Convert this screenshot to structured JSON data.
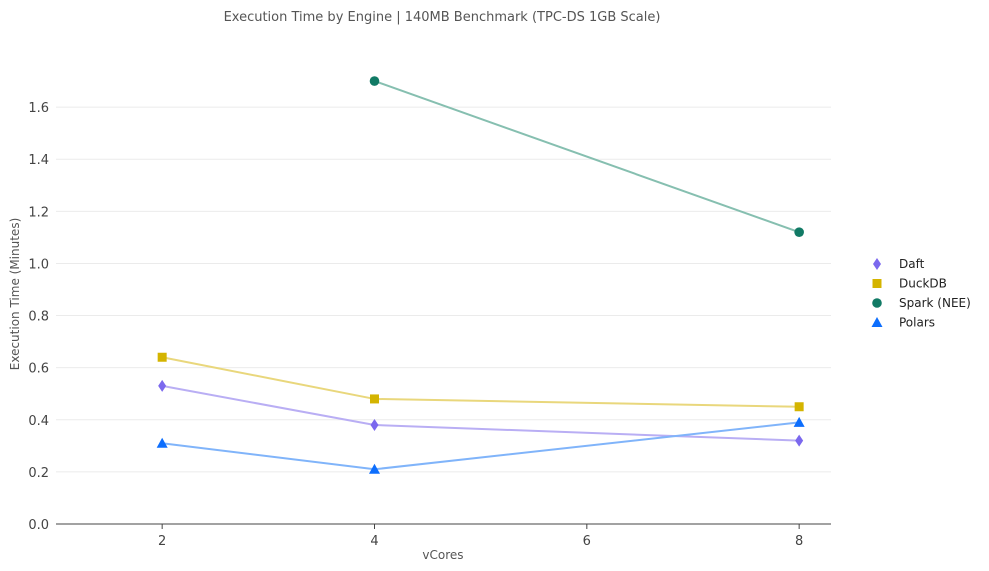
{
  "chart_data": {
    "type": "line",
    "title": "Execution Time by Engine | 140MB Benchmark (TPC-DS 1GB Scale)",
    "xlabel": "vCores",
    "ylabel": "Execution Time (Minutes)",
    "xlim": [
      1,
      8.3
    ],
    "ylim": [
      0,
      1.8
    ],
    "xticks": [
      2,
      4,
      6,
      8
    ],
    "yticks": [
      0.0,
      0.2,
      0.4,
      0.6,
      0.8,
      1.0,
      1.2,
      1.4,
      1.6
    ],
    "ytick_labels": [
      "0.0",
      "0.2",
      "0.4",
      "0.6",
      "0.8",
      "1.0",
      "1.2",
      "1.4",
      "1.6"
    ],
    "grid": "horizontal",
    "legend_position": "right",
    "series": [
      {
        "name": "Daft",
        "marker": "diamond",
        "color": "#7b68ee",
        "line_color": "#b9aef4",
        "x": [
          2,
          4,
          8
        ],
        "y": [
          0.53,
          0.38,
          0.32
        ]
      },
      {
        "name": "DuckDB",
        "marker": "square",
        "color": "#d4b400",
        "line_color": "#e9d77c",
        "x": [
          2,
          4,
          8
        ],
        "y": [
          0.64,
          0.48,
          0.45
        ]
      },
      {
        "name": "Spark (NEE)",
        "marker": "circle",
        "color": "#117a65",
        "line_color": "#86bfb0",
        "x": [
          4,
          8
        ],
        "y": [
          1.7,
          1.12
        ]
      },
      {
        "name": "Polars",
        "marker": "triangle",
        "color": "#0d6efd",
        "line_color": "#80b4fa",
        "x": [
          2,
          4,
          8
        ],
        "y": [
          0.31,
          0.21,
          0.39
        ]
      }
    ]
  }
}
